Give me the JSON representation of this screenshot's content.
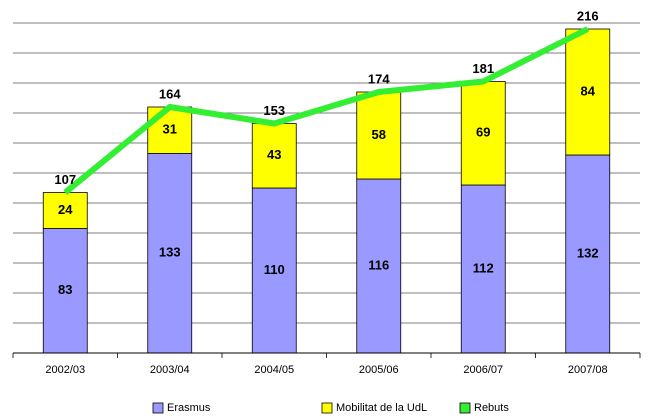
{
  "chart_data": {
    "type": "bar",
    "stacked": true,
    "categories": [
      "2002/03",
      "2003/04",
      "2004/05",
      "2005/06",
      "2006/07",
      "2007/08"
    ],
    "series": [
      {
        "name": "Erasmus",
        "color": "#9999ff",
        "values": [
          83,
          133,
          110,
          116,
          112,
          132
        ]
      },
      {
        "name": "Mobilitat de la UdL",
        "color": "#ffff00",
        "values": [
          24,
          31,
          43,
          58,
          69,
          84
        ]
      },
      {
        "name": "Rebuts",
        "color": "#33ee33",
        "type": "line",
        "values": [
          107,
          164,
          153,
          174,
          181,
          216
        ]
      }
    ],
    "ylim": [
      0,
      220
    ],
    "yticks": [
      0,
      20,
      40,
      60,
      80,
      100,
      120,
      140,
      160,
      180,
      200,
      220
    ],
    "grid": true,
    "legend": "bottom"
  }
}
